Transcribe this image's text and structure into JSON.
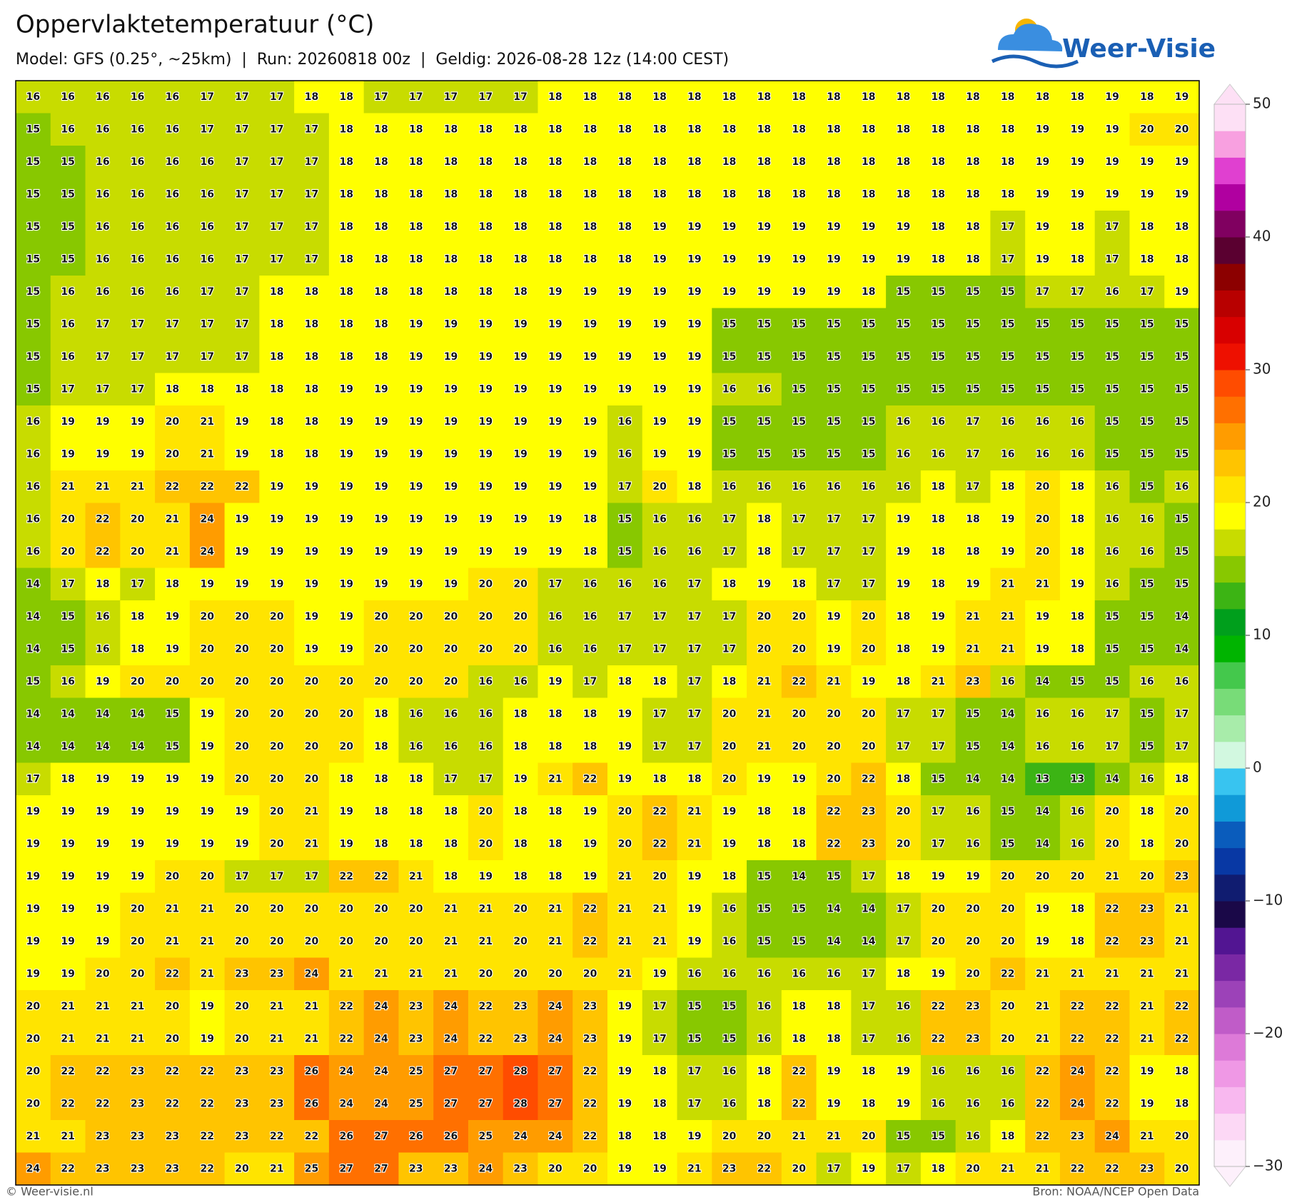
{
  "header": {
    "title": "Oppervlaktetemperatuur (°C)",
    "subtitle": "Model: GFS (0.25°, ~25km)  |  Run: 20260818 00z  |  Geldig: 2026-08-28 12z (14:00 CEST)"
  },
  "logo": {
    "text": "Weer-Visie"
  },
  "grid": {
    "rows": [
      [
        16,
        16,
        16,
        16,
        16,
        17,
        17,
        17,
        18,
        18,
        17,
        17,
        17,
        17,
        17,
        18,
        18,
        18,
        18,
        18,
        18,
        18,
        18,
        18,
        18,
        18,
        18,
        18,
        18,
        18,
        18,
        19,
        18,
        19
      ],
      [
        15,
        16,
        16,
        16,
        16,
        17,
        17,
        17,
        17,
        18,
        18,
        18,
        18,
        18,
        18,
        18,
        18,
        18,
        18,
        18,
        18,
        18,
        18,
        18,
        18,
        18,
        18,
        18,
        18,
        19,
        19,
        19,
        20,
        20
      ],
      [
        15,
        15,
        16,
        16,
        16,
        16,
        17,
        17,
        17,
        18,
        18,
        18,
        18,
        18,
        18,
        18,
        18,
        18,
        18,
        18,
        18,
        18,
        18,
        18,
        18,
        18,
        18,
        18,
        18,
        19,
        19,
        19,
        19,
        19
      ],
      [
        15,
        15,
        16,
        16,
        16,
        16,
        17,
        17,
        17,
        18,
        18,
        18,
        18,
        18,
        18,
        18,
        18,
        18,
        18,
        18,
        18,
        18,
        18,
        18,
        18,
        18,
        18,
        18,
        18,
        19,
        19,
        19,
        19,
        19
      ],
      [
        15,
        15,
        16,
        16,
        16,
        16,
        17,
        17,
        17,
        18,
        18,
        18,
        18,
        18,
        18,
        18,
        18,
        18,
        19,
        19,
        19,
        19,
        19,
        19,
        19,
        19,
        18,
        18,
        17,
        19,
        18,
        17,
        18,
        18
      ],
      [
        15,
        15,
        16,
        16,
        16,
        16,
        17,
        17,
        17,
        18,
        18,
        18,
        18,
        18,
        18,
        18,
        18,
        18,
        19,
        19,
        19,
        19,
        19,
        19,
        19,
        19,
        18,
        18,
        17,
        19,
        18,
        17,
        18,
        18
      ],
      [
        15,
        16,
        16,
        16,
        16,
        17,
        17,
        18,
        18,
        18,
        18,
        18,
        18,
        18,
        18,
        19,
        19,
        19,
        19,
        19,
        19,
        19,
        19,
        19,
        18,
        15,
        15,
        15,
        15,
        17,
        17,
        16,
        17,
        19
      ],
      [
        15,
        16,
        17,
        17,
        17,
        17,
        17,
        18,
        18,
        18,
        18,
        19,
        19,
        19,
        19,
        19,
        19,
        19,
        19,
        19,
        15,
        15,
        15,
        15,
        15,
        15,
        15,
        15,
        15,
        15,
        15,
        15,
        15,
        15
      ],
      [
        15,
        16,
        17,
        17,
        17,
        17,
        17,
        18,
        18,
        18,
        18,
        19,
        19,
        19,
        19,
        19,
        19,
        19,
        19,
        19,
        15,
        15,
        15,
        15,
        15,
        15,
        15,
        15,
        15,
        15,
        15,
        15,
        15,
        15
      ],
      [
        15,
        17,
        17,
        17,
        18,
        18,
        18,
        18,
        18,
        19,
        19,
        19,
        19,
        19,
        19,
        19,
        19,
        19,
        19,
        19,
        16,
        16,
        15,
        15,
        15,
        15,
        15,
        15,
        15,
        15,
        15,
        15,
        15,
        15
      ],
      [
        16,
        19,
        19,
        19,
        20,
        21,
        19,
        18,
        18,
        19,
        19,
        19,
        19,
        19,
        19,
        19,
        19,
        16,
        19,
        19,
        15,
        15,
        15,
        15,
        15,
        16,
        16,
        17,
        16,
        16,
        16,
        15,
        15,
        15
      ],
      [
        16,
        19,
        19,
        19,
        20,
        21,
        19,
        18,
        18,
        19,
        19,
        19,
        19,
        19,
        19,
        19,
        19,
        16,
        19,
        19,
        15,
        15,
        15,
        15,
        15,
        16,
        16,
        17,
        16,
        16,
        16,
        15,
        15,
        15
      ],
      [
        16,
        21,
        21,
        21,
        22,
        22,
        22,
        19,
        19,
        19,
        19,
        19,
        19,
        19,
        19,
        19,
        19,
        17,
        20,
        18,
        16,
        16,
        16,
        16,
        16,
        16,
        18,
        17,
        18,
        20,
        18,
        16,
        15,
        16
      ],
      [
        16,
        20,
        22,
        20,
        21,
        24,
        19,
        19,
        19,
        19,
        19,
        19,
        19,
        19,
        19,
        19,
        18,
        15,
        16,
        16,
        17,
        18,
        17,
        17,
        17,
        19,
        18,
        18,
        19,
        20,
        18,
        16,
        16,
        15
      ],
      [
        16,
        20,
        22,
        20,
        21,
        24,
        19,
        19,
        19,
        19,
        19,
        19,
        19,
        19,
        19,
        19,
        18,
        15,
        16,
        16,
        17,
        18,
        17,
        17,
        17,
        19,
        18,
        18,
        19,
        20,
        18,
        16,
        16,
        15
      ],
      [
        14,
        17,
        18,
        17,
        18,
        19,
        19,
        19,
        19,
        19,
        19,
        19,
        19,
        20,
        20,
        17,
        16,
        16,
        16,
        17,
        18,
        19,
        18,
        17,
        17,
        19,
        18,
        19,
        21,
        21,
        19,
        16,
        15,
        15
      ],
      [
        14,
        15,
        16,
        18,
        19,
        20,
        20,
        20,
        19,
        19,
        20,
        20,
        20,
        20,
        20,
        16,
        16,
        17,
        17,
        17,
        17,
        20,
        20,
        19,
        20,
        18,
        19,
        21,
        21,
        19,
        18,
        15,
        15,
        14
      ],
      [
        14,
        15,
        16,
        18,
        19,
        20,
        20,
        20,
        19,
        19,
        20,
        20,
        20,
        20,
        20,
        16,
        16,
        17,
        17,
        17,
        17,
        20,
        20,
        19,
        20,
        18,
        19,
        21,
        21,
        19,
        18,
        15,
        15,
        14
      ],
      [
        15,
        16,
        19,
        20,
        20,
        20,
        20,
        20,
        20,
        20,
        20,
        20,
        20,
        16,
        16,
        19,
        17,
        18,
        18,
        17,
        18,
        21,
        22,
        21,
        19,
        18,
        21,
        23,
        16,
        14,
        15,
        15,
        16,
        16
      ],
      [
        14,
        14,
        14,
        14,
        15,
        19,
        20,
        20,
        20,
        20,
        18,
        16,
        16,
        16,
        18,
        18,
        18,
        19,
        17,
        17,
        20,
        21,
        20,
        20,
        20,
        17,
        17,
        15,
        14,
        16,
        16,
        17,
        15,
        17
      ],
      [
        14,
        14,
        14,
        14,
        15,
        19,
        20,
        20,
        20,
        20,
        18,
        16,
        16,
        16,
        18,
        18,
        18,
        19,
        17,
        17,
        20,
        21,
        20,
        20,
        20,
        17,
        17,
        15,
        14,
        16,
        16,
        17,
        15,
        17
      ],
      [
        17,
        18,
        19,
        19,
        19,
        19,
        20,
        20,
        20,
        18,
        18,
        18,
        17,
        17,
        19,
        21,
        22,
        19,
        18,
        18,
        20,
        19,
        19,
        20,
        22,
        18,
        15,
        14,
        14,
        13,
        13,
        14,
        16,
        18
      ],
      [
        19,
        19,
        19,
        19,
        19,
        19,
        19,
        20,
        21,
        19,
        18,
        18,
        18,
        20,
        18,
        18,
        19,
        20,
        22,
        21,
        19,
        18,
        18,
        22,
        23,
        20,
        17,
        16,
        15,
        14,
        16,
        20,
        18,
        20
      ],
      [
        19,
        19,
        19,
        19,
        19,
        19,
        19,
        20,
        21,
        19,
        18,
        18,
        18,
        20,
        18,
        18,
        19,
        20,
        22,
        21,
        19,
        18,
        18,
        22,
        23,
        20,
        17,
        16,
        15,
        14,
        16,
        20,
        18,
        20
      ],
      [
        19,
        19,
        19,
        19,
        20,
        20,
        17,
        17,
        17,
        22,
        22,
        21,
        18,
        19,
        18,
        18,
        19,
        21,
        20,
        19,
        18,
        15,
        14,
        15,
        17,
        18,
        19,
        19,
        20,
        20,
        20,
        21,
        20,
        23
      ],
      [
        19,
        19,
        19,
        20,
        21,
        21,
        20,
        20,
        20,
        20,
        20,
        20,
        21,
        21,
        20,
        21,
        22,
        21,
        21,
        19,
        16,
        15,
        15,
        14,
        14,
        17,
        20,
        20,
        20,
        19,
        18,
        22,
        23,
        21
      ],
      [
        19,
        19,
        19,
        20,
        21,
        21,
        20,
        20,
        20,
        20,
        20,
        20,
        21,
        21,
        20,
        21,
        22,
        21,
        21,
        19,
        16,
        15,
        15,
        14,
        14,
        17,
        20,
        20,
        20,
        19,
        18,
        22,
        23,
        21
      ],
      [
        19,
        19,
        20,
        20,
        22,
        21,
        23,
        23,
        24,
        21,
        21,
        21,
        21,
        20,
        20,
        20,
        20,
        21,
        19,
        16,
        16,
        16,
        16,
        16,
        17,
        18,
        19,
        20,
        22,
        21,
        21,
        21,
        21,
        21
      ],
      [
        20,
        21,
        21,
        21,
        20,
        19,
        20,
        21,
        21,
        22,
        24,
        23,
        24,
        22,
        23,
        24,
        23,
        19,
        17,
        15,
        15,
        16,
        18,
        18,
        17,
        16,
        22,
        23,
        20,
        21,
        22,
        22,
        21,
        22
      ],
      [
        20,
        21,
        21,
        21,
        20,
        19,
        20,
        21,
        21,
        22,
        24,
        23,
        24,
        22,
        23,
        24,
        23,
        19,
        17,
        15,
        15,
        16,
        18,
        18,
        17,
        16,
        22,
        23,
        20,
        21,
        22,
        22,
        21,
        22
      ],
      [
        20,
        22,
        22,
        23,
        22,
        22,
        23,
        23,
        26,
        24,
        24,
        25,
        27,
        27,
        28,
        27,
        22,
        19,
        18,
        17,
        16,
        18,
        22,
        19,
        18,
        19,
        16,
        16,
        16,
        22,
        24,
        22,
        19,
        18
      ],
      [
        20,
        22,
        22,
        23,
        22,
        22,
        23,
        23,
        26,
        24,
        24,
        25,
        27,
        27,
        28,
        27,
        22,
        19,
        18,
        17,
        16,
        18,
        22,
        19,
        18,
        19,
        16,
        16,
        16,
        22,
        24,
        22,
        19,
        18
      ],
      [
        21,
        21,
        23,
        23,
        23,
        22,
        23,
        22,
        22,
        26,
        27,
        26,
        26,
        25,
        24,
        24,
        22,
        18,
        18,
        19,
        20,
        20,
        21,
        21,
        20,
        15,
        15,
        16,
        18,
        22,
        23,
        24,
        21,
        20
      ],
      [
        24,
        22,
        23,
        23,
        23,
        22,
        20,
        21,
        25,
        27,
        27,
        23,
        23,
        24,
        23,
        20,
        20,
        19,
        19,
        21,
        23,
        22,
        20,
        17,
        19,
        17,
        18,
        20,
        21,
        21,
        22,
        22,
        23,
        20
      ]
    ]
  },
  "colorbar": {
    "lim": [
      -30,
      50
    ],
    "ticks": [
      50,
      40,
      30,
      20,
      10,
      0,
      {
        "value": -10,
        "label": "−10"
      },
      {
        "value": -20,
        "label": "−20"
      },
      {
        "value": -30,
        "label": "−30"
      }
    ],
    "colors": [
      "#fdf0fb",
      "#fcd8f5",
      "#f8b8ef",
      "#ef98e5",
      "#dd7ad8",
      "#c05cc8",
      "#9c42b8",
      "#7a28a4",
      "#521592",
      "#1a0848",
      "#101c70",
      "#0838a4",
      "#0a5cbc",
      "#109ad8",
      "#38c4f0",
      "#d2f8e0",
      "#a8ecaa",
      "#78dc78",
      "#44c84c",
      "#00b400",
      "#009f1c",
      "#3cb414",
      "#88c800",
      "#c8dc00",
      "#ffff00",
      "#ffe400",
      "#ffc400",
      "#ff9c00",
      "#ff7000",
      "#ff4c00",
      "#ee1000",
      "#d80000",
      "#b80000",
      "#8c0000",
      "#5a0030",
      "#800060",
      "#b000a0",
      "#e040d0",
      "#f8a0e0",
      "#fde0f5"
    ]
  },
  "footer": {
    "left": "© Weer-visie.nl",
    "right": "Bron: NOAA/NCEP Open Data"
  }
}
